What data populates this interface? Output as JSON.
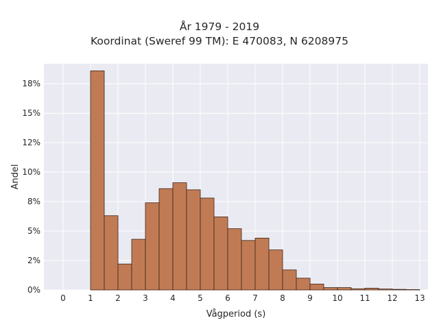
{
  "chart_data": {
    "type": "bar",
    "title": "År 1979 - 2019",
    "subtitle": "Koordinat (Sweref 99 TM): E 470083, N 6208975",
    "xlabel": "Vågperiod (s)",
    "ylabel": "Andel",
    "bin_width": 0.5,
    "bins_left": [
      1.0,
      1.5,
      2.0,
      2.5,
      3.0,
      3.5,
      4.0,
      4.5,
      5.0,
      5.5,
      6.0,
      6.5,
      7.0,
      7.5,
      8.0,
      8.5,
      9.0,
      9.5,
      10.0,
      10.5,
      11.0,
      11.5,
      12.0,
      12.5
    ],
    "values": [
      18.6,
      6.3,
      2.2,
      4.3,
      7.4,
      8.6,
      9.1,
      8.5,
      7.8,
      6.2,
      5.2,
      4.2,
      4.4,
      3.4,
      1.7,
      1.0,
      0.5,
      0.2,
      0.2,
      0.1,
      0.15,
      0.08,
      0.05,
      0.03
    ],
    "xlim": [
      -0.7,
      13.3
    ],
    "ylim": [
      0,
      19.2
    ],
    "xticks": [
      0,
      1,
      2,
      3,
      4,
      5,
      6,
      7,
      8,
      9,
      10,
      11,
      12,
      13
    ],
    "yticks": [
      0,
      2.5,
      5,
      7.5,
      10,
      12.5,
      15,
      17.5
    ],
    "ytick_labels": [
      "0%",
      "2%",
      "5%",
      "8%",
      "10%",
      "12%",
      "15%",
      "18%"
    ],
    "grid": true,
    "colors": {
      "bar": "#c17b54",
      "edge": "#3d2418",
      "plot_bg": "#eaeaf2",
      "grid": "#ffffff"
    }
  }
}
